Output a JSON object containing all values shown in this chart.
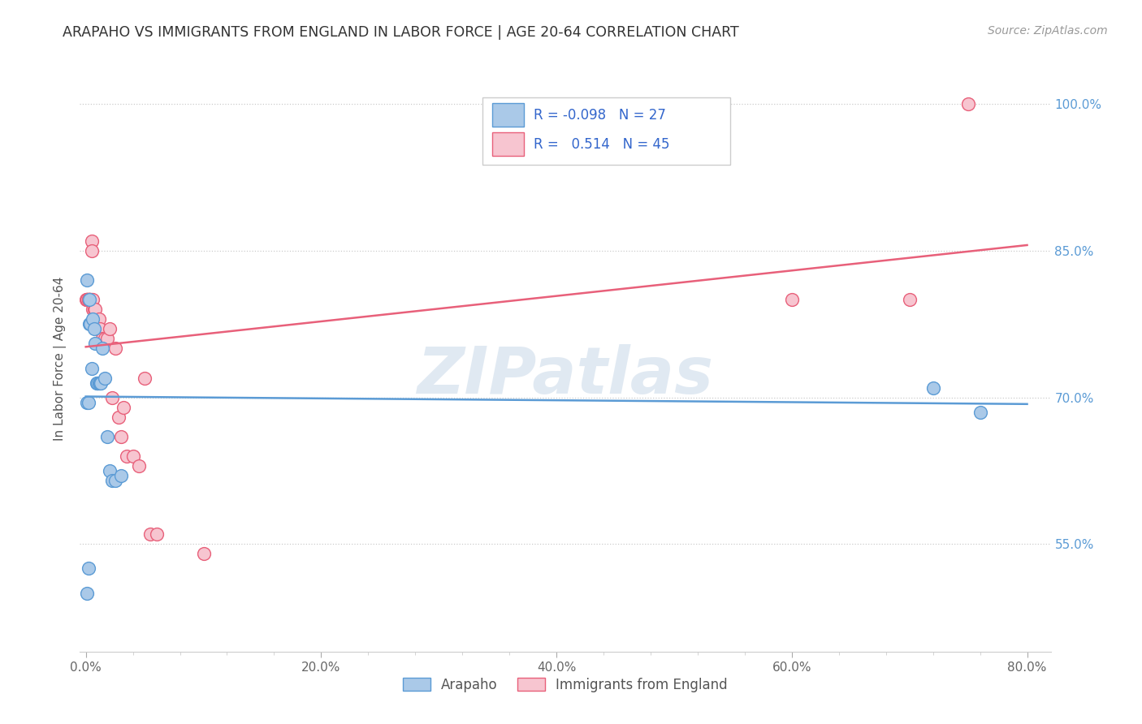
{
  "title": "ARAPAHO VS IMMIGRANTS FROM ENGLAND IN LABOR FORCE | AGE 20-64 CORRELATION CHART",
  "source": "Source: ZipAtlas.com",
  "ylabel": "In Labor Force | Age 20-64",
  "x_tick_labels": [
    "0.0%",
    "",
    "",
    "",
    "",
    "20.0%",
    "",
    "",
    "",
    "",
    "40.0%",
    "",
    "",
    "",
    "",
    "60.0%",
    "",
    "",
    "",
    "",
    "80.0%"
  ],
  "x_ticks": [
    0.0,
    0.04,
    0.08,
    0.12,
    0.16,
    0.2,
    0.24,
    0.28,
    0.32,
    0.36,
    0.4,
    0.44,
    0.48,
    0.52,
    0.56,
    0.6,
    0.64,
    0.68,
    0.72,
    0.76,
    0.8
  ],
  "x_tick_major": [
    0.0,
    0.2,
    0.4,
    0.6,
    0.8
  ],
  "x_tick_major_labels": [
    "0.0%",
    "20.0%",
    "40.0%",
    "60.0%",
    "80.0%"
  ],
  "y_tick_labels_right": [
    "55.0%",
    "70.0%",
    "85.0%",
    "100.0%"
  ],
  "y_ticks": [
    0.55,
    0.7,
    0.85,
    1.0
  ],
  "x_min": -0.005,
  "x_max": 0.82,
  "y_min": 0.44,
  "y_max": 1.04,
  "watermark": "ZIPatlas",
  "blue_R": -0.098,
  "blue_N": 27,
  "pink_R": 0.514,
  "pink_N": 45,
  "blue_color": "#aac9e8",
  "pink_color": "#f7c5d0",
  "blue_edge_color": "#5b9bd5",
  "pink_edge_color": "#e8607a",
  "blue_line_color": "#5b9bd5",
  "pink_line_color": "#e8607a",
  "arapaho_label": "Arapaho",
  "england_label": "Immigrants from England",
  "blue_scatter_x": [
    0.001,
    0.001,
    0.002,
    0.003,
    0.003,
    0.004,
    0.005,
    0.006,
    0.007,
    0.008,
    0.009,
    0.01,
    0.01,
    0.011,
    0.012,
    0.013,
    0.014,
    0.016,
    0.018,
    0.02,
    0.022,
    0.025,
    0.03,
    0.002,
    0.001,
    0.72,
    0.76
  ],
  "blue_scatter_y": [
    0.82,
    0.695,
    0.695,
    0.8,
    0.775,
    0.775,
    0.73,
    0.78,
    0.77,
    0.755,
    0.715,
    0.715,
    0.715,
    0.715,
    0.715,
    0.715,
    0.75,
    0.72,
    0.66,
    0.625,
    0.615,
    0.615,
    0.62,
    0.525,
    0.5,
    0.71,
    0.685
  ],
  "pink_scatter_x": [
    0.0,
    0.001,
    0.001,
    0.001,
    0.001,
    0.001,
    0.002,
    0.002,
    0.002,
    0.003,
    0.003,
    0.003,
    0.003,
    0.004,
    0.004,
    0.005,
    0.005,
    0.005,
    0.006,
    0.006,
    0.007,
    0.008,
    0.009,
    0.01,
    0.011,
    0.012,
    0.014,
    0.016,
    0.018,
    0.02,
    0.022,
    0.025,
    0.028,
    0.03,
    0.032,
    0.035,
    0.04,
    0.045,
    0.05,
    0.055,
    0.06,
    0.1,
    0.6,
    0.7,
    0.75
  ],
  "pink_scatter_y": [
    0.8,
    0.8,
    0.8,
    0.8,
    0.8,
    0.8,
    0.8,
    0.8,
    0.8,
    0.8,
    0.8,
    0.8,
    0.8,
    0.8,
    0.8,
    0.86,
    0.85,
    0.8,
    0.79,
    0.8,
    0.79,
    0.79,
    0.77,
    0.77,
    0.78,
    0.77,
    0.76,
    0.76,
    0.76,
    0.77,
    0.7,
    0.75,
    0.68,
    0.66,
    0.69,
    0.64,
    0.64,
    0.63,
    0.72,
    0.56,
    0.56,
    0.54,
    0.8,
    0.8,
    1.0
  ]
}
